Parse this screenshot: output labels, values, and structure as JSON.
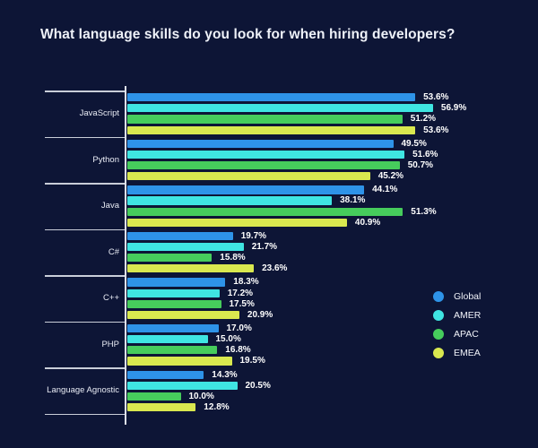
{
  "title": "What language skills do you look for when hiring developers?",
  "colors": {
    "background": "#0d1536",
    "axis": "#f0f3fa",
    "value_label": "#ffffff",
    "category_label": "#e9ecf5"
  },
  "chart_data": {
    "type": "bar",
    "orientation": "horizontal",
    "title": "What language skills do you look for when hiring developers?",
    "categories": [
      "JavaScript",
      "Python",
      "Java",
      "C#",
      "C++",
      "PHP",
      "Language Agnostic"
    ],
    "series": [
      {
        "name": "Global",
        "color": "#2e93e8",
        "values": [
          53.6,
          49.5,
          44.1,
          19.7,
          18.3,
          17.0,
          14.3
        ]
      },
      {
        "name": "AMER",
        "color": "#3fe5e2",
        "values": [
          56.9,
          51.6,
          38.1,
          21.7,
          17.2,
          15.0,
          20.5
        ]
      },
      {
        "name": "APAC",
        "color": "#46cc5c",
        "values": [
          51.2,
          50.7,
          51.3,
          15.8,
          17.5,
          16.8,
          10.0
        ]
      },
      {
        "name": "EMEA",
        "color": "#d9e84f",
        "values": [
          53.6,
          45.2,
          40.9,
          23.6,
          20.9,
          19.5,
          12.8
        ]
      }
    ],
    "value_suffix": "%",
    "value_decimals": 1,
    "xlim": [
      0,
      60
    ],
    "grid": "category-separators",
    "legend_position": "right",
    "legend_items": [
      "Global",
      "AMER",
      "APAC",
      "EMEA"
    ]
  }
}
